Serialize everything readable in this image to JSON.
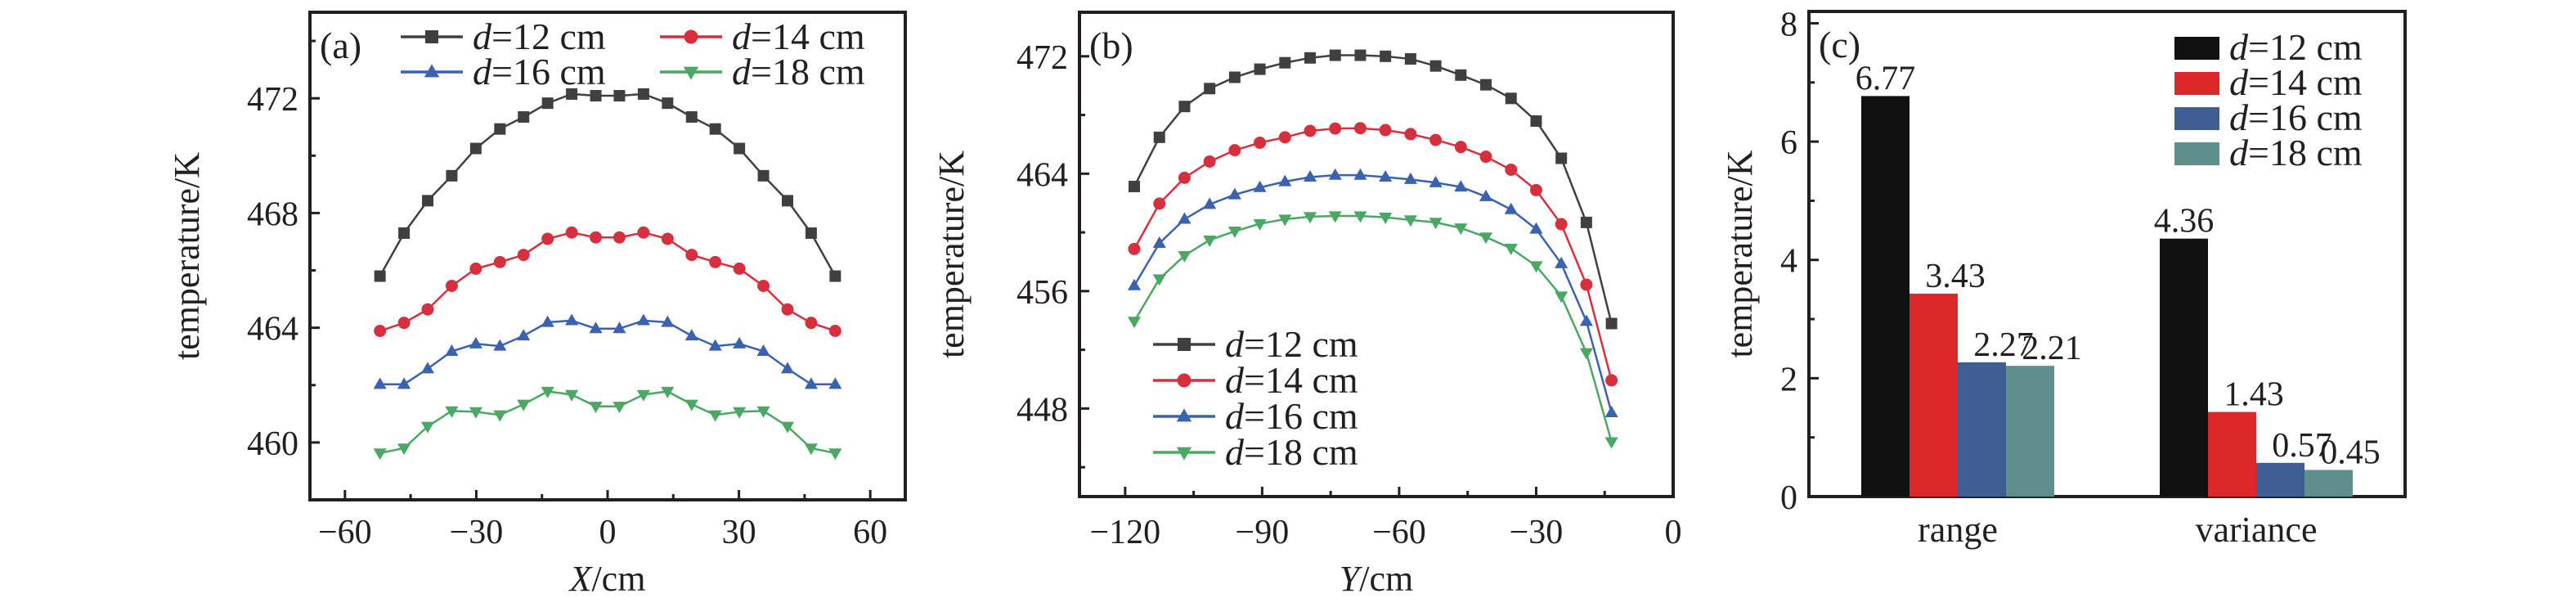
{
  "chart_data": [
    {
      "panel_label": "(a)",
      "type": "line",
      "xlabel_var": "X",
      "xlabel_unit": "/cm",
      "ylabel": "temperature/K",
      "xlim": [
        -68,
        68
      ],
      "ylim": [
        458,
        475
      ],
      "xticks": [
        -60,
        -30,
        0,
        30,
        60
      ],
      "xtick_labels": [
        "−60",
        "−30",
        "0",
        "30",
        "60"
      ],
      "yticks": [
        460,
        464,
        468,
        472
      ],
      "legend_placement": "top",
      "x": [
        -52,
        -46.5,
        -41.1,
        -35.6,
        -30.1,
        -24.6,
        -19.2,
        -13.7,
        -8.2,
        -2.7,
        2.7,
        8.2,
        13.7,
        19.2,
        24.6,
        30.1,
        35.6,
        41.1,
        46.5,
        52
      ],
      "series": [
        {
          "name": "d=12 cm",
          "marker": "square",
          "color": "#404040",
          "values": [
            465.8,
            467.3,
            468.43,
            469.3,
            470.25,
            470.93,
            471.35,
            471.83,
            472.15,
            472.09,
            472.09,
            472.15,
            471.83,
            471.35,
            470.93,
            470.25,
            469.3,
            468.43,
            467.3,
            465.8
          ]
        },
        {
          "name": "d=14 cm",
          "marker": "circle",
          "color": "#d6303f",
          "values": [
            463.89,
            464.17,
            464.64,
            465.46,
            466.06,
            466.29,
            466.54,
            467.1,
            467.32,
            467.15,
            467.15,
            467.32,
            467.1,
            466.54,
            466.29,
            466.06,
            465.46,
            464.64,
            464.17,
            463.89
          ]
        },
        {
          "name": "d=16 cm",
          "marker": "triangle-up",
          "color": "#3a62b0",
          "values": [
            462.03,
            462.03,
            462.57,
            463.18,
            463.44,
            463.36,
            463.72,
            464.19,
            464.25,
            463.97,
            463.97,
            464.25,
            464.19,
            463.72,
            463.36,
            463.44,
            463.18,
            462.57,
            462.03,
            462.03
          ]
        },
        {
          "name": "d=18 cm",
          "marker": "triangle-down",
          "color": "#4aa864",
          "values": [
            459.63,
            459.8,
            460.56,
            461.1,
            461.07,
            460.96,
            461.33,
            461.78,
            461.67,
            461.26,
            461.26,
            461.67,
            461.78,
            461.33,
            460.96,
            461.07,
            461.1,
            460.56,
            459.8,
            459.63
          ]
        }
      ]
    },
    {
      "panel_label": "(b)",
      "type": "line",
      "xlabel_var": "Y",
      "xlabel_unit": "/cm",
      "ylabel": "temperature/K",
      "xlim": [
        -130,
        0
      ],
      "ylim": [
        442,
        475
      ],
      "xticks": [
        -120,
        -90,
        -60,
        -30,
        0
      ],
      "xtick_labels": [
        "−120",
        "−90",
        "−60",
        "−30",
        "0"
      ],
      "yticks": [
        448,
        456,
        464,
        472
      ],
      "legend_placement": "bottom-left",
      "x": [
        -118,
        -112.5,
        -107,
        -101.5,
        -96,
        -90.5,
        -85,
        -79.5,
        -74,
        -68.5,
        -63,
        -57.5,
        -52,
        -46.5,
        -41,
        -35.5,
        -30,
        -24.5,
        -19,
        -13.5
      ],
      "series": [
        {
          "name": "d=12 cm",
          "marker": "square",
          "color": "#404040",
          "values": [
            463.13,
            466.48,
            468.58,
            469.8,
            470.57,
            471.12,
            471.56,
            471.89,
            472.07,
            472.07,
            472.0,
            471.82,
            471.34,
            470.72,
            470.06,
            469.13,
            467.59,
            465.05,
            460.68,
            453.79
          ]
        },
        {
          "name": "d=14 cm",
          "marker": "circle",
          "color": "#d6303f",
          "values": [
            458.87,
            461.96,
            463.72,
            464.83,
            465.6,
            466.11,
            466.48,
            466.92,
            467.08,
            467.1,
            466.97,
            466.7,
            466.3,
            465.82,
            465.16,
            464.27,
            462.88,
            460.56,
            456.44,
            449.92
          ]
        },
        {
          "name": "d=16 cm",
          "marker": "triangle-up",
          "color": "#3a62b0",
          "values": [
            456.37,
            459.26,
            460.9,
            461.91,
            462.57,
            463.06,
            463.46,
            463.77,
            463.9,
            463.9,
            463.77,
            463.61,
            463.39,
            463.1,
            462.44,
            461.56,
            460.23,
            457.87,
            453.94,
            447.72
          ]
        },
        {
          "name": "d=18 cm",
          "marker": "triangle-down",
          "color": "#4aa864",
          "values": [
            453.94,
            456.83,
            458.42,
            459.48,
            460.08,
            460.59,
            460.9,
            461.07,
            461.12,
            461.12,
            461.03,
            460.85,
            460.68,
            460.3,
            459.68,
            458.91,
            457.72,
            455.66,
            451.8,
            445.73
          ]
        }
      ]
    },
    {
      "panel_label": "(c)",
      "type": "bar",
      "xlabel": "",
      "ylabel": "temperature/K",
      "ylim": [
        0,
        8.2
      ],
      "yticks": [
        0,
        2,
        4,
        6,
        8
      ],
      "categories": [
        "range",
        "variance"
      ],
      "legend_placement": "top-right",
      "series": [
        {
          "name": "d=12 cm",
          "color": "#111111",
          "values": [
            6.77,
            4.36
          ],
          "labels": [
            "6.77",
            "4.36"
          ]
        },
        {
          "name": "d=14 cm",
          "color": "#dc2828",
          "values": [
            3.43,
            1.43
          ],
          "labels": [
            "3.43",
            "1.43"
          ]
        },
        {
          "name": "d=16 cm",
          "color": "#3f5f94",
          "values": [
            2.27,
            0.57
          ],
          "labels": [
            "2.27",
            "0.57"
          ]
        },
        {
          "name": "d=18 cm",
          "color": "#5f8f8c",
          "values": [
            2.21,
            0.45
          ],
          "labels": [
            "2.21",
            "0.45"
          ]
        }
      ]
    }
  ]
}
